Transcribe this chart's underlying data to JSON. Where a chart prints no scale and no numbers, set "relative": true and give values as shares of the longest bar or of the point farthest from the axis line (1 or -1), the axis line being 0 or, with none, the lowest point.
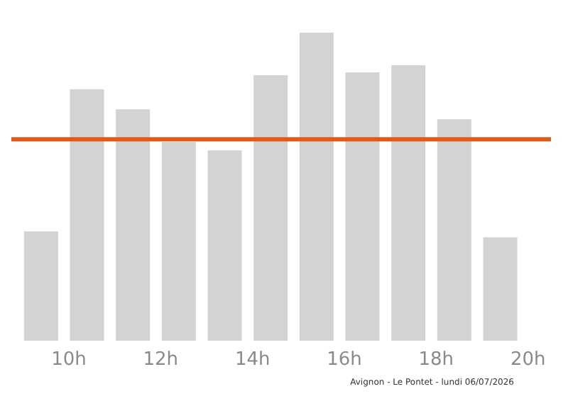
{
  "chart_data": {
    "type": "bar",
    "relative": true,
    "x": [
      9.4,
      10.4,
      11.4,
      12.4,
      13.4,
      14.4,
      15.4,
      16.4,
      17.4,
      18.4,
      19.4
    ],
    "values": [
      0.355,
      0.816,
      0.751,
      0.645,
      0.618,
      0.862,
      1,
      0.871,
      0.894,
      0.719,
      0.336
    ],
    "color": "#d3d3d3",
    "xlim": [
      8.5,
      20.5
    ],
    "xticks": [
      {
        "value": 10,
        "label": "10h"
      },
      {
        "value": 12,
        "label": "12h"
      },
      {
        "value": 14,
        "label": "14h"
      },
      {
        "value": 16,
        "label": "16h"
      },
      {
        "value": 18,
        "label": "18h"
      },
      {
        "value": 20,
        "label": "20h"
      }
    ],
    "ref_lines": [
      {
        "axis": "y",
        "value": 0.654,
        "label": null,
        "color": "#e05a1c"
      }
    ],
    "annotations": [
      "Avignon - Le Pontet - lundi 06/07/2026"
    ]
  }
}
